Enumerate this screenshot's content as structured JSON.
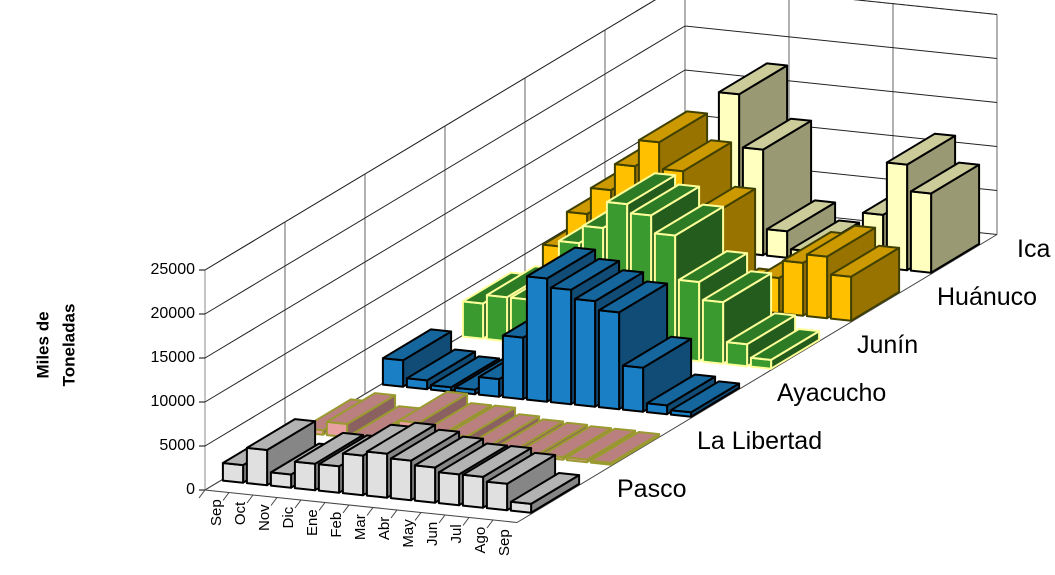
{
  "chart_data": {
    "type": "bar3d",
    "ylabel": [
      "Miles de",
      "Toneladas"
    ],
    "categories": [
      "Sep",
      "Oct",
      "Nov",
      "Dic",
      "Ene",
      "Feb",
      "Mar",
      "Abr",
      "May",
      "Jun",
      "Jul",
      "Ago",
      "Sep"
    ],
    "ylim": [
      0,
      25000
    ],
    "yticks": [
      0,
      5000,
      10000,
      15000,
      20000,
      25000
    ],
    "grid": true,
    "series": [
      {
        "name": "Pasco",
        "color": "#e0e0e0",
        "stroke": "#000000",
        "values": [
          2000,
          4000,
          1500,
          3000,
          3000,
          4500,
          5000,
          4500,
          4000,
          3500,
          3500,
          3000,
          1000
        ]
      },
      {
        "name": "La Libertad",
        "color": "#e8a0a0",
        "stroke": "#9a9a30",
        "values": [
          500,
          1500,
          300,
          300,
          2500,
          1500,
          1500,
          800,
          500,
          400,
          300,
          300,
          200
        ]
      },
      {
        "name": "Ayacucho",
        "color": "#1a7fc4",
        "stroke": "#000000",
        "values": [
          3000,
          1000,
          500,
          500,
          2000,
          7000,
          14000,
          13000,
          12000,
          11000,
          5000,
          1000,
          500
        ]
      },
      {
        "name": "Junín",
        "color": "#3a9a30",
        "stroke": "#ffff99",
        "values": [
          4000,
          5000,
          5000,
          7000,
          12000,
          14000,
          17000,
          16000,
          14000,
          9000,
          7000,
          2500,
          1000
        ]
      },
      {
        "name": "Huánuco",
        "color": "#ffc000",
        "stroke": "#404000",
        "values": [
          5000,
          9000,
          12000,
          15000,
          18000,
          15000,
          10000,
          1000,
          500,
          4000,
          6000,
          7000,
          5000
        ]
      },
      {
        "name": "Ica",
        "color": "#ffffc0",
        "stroke": "#000000",
        "values": [
          1000,
          1000,
          2000,
          4000,
          18000,
          12000,
          3000,
          1000,
          500,
          1000,
          6000,
          12000,
          9000
        ]
      }
    ]
  }
}
